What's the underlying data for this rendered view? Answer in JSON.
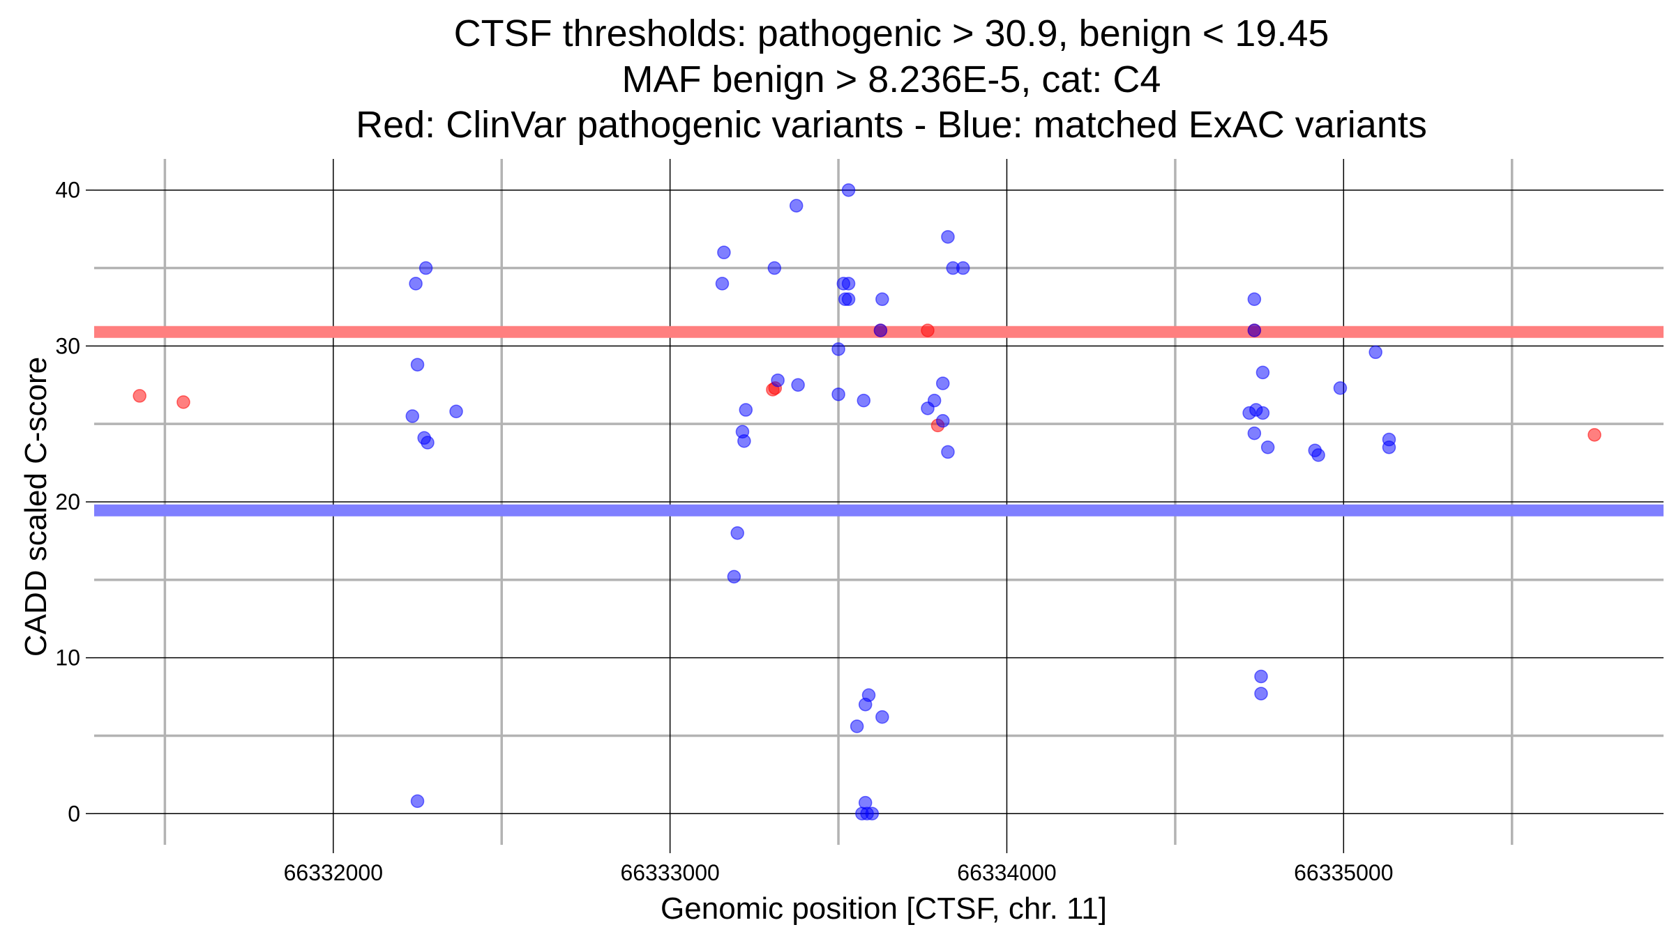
{
  "chart_data": {
    "type": "scatter",
    "title": [
      "CTSF thresholds: pathogenic > 30.9, benign < 19.45",
      "MAF benign > 8.236E-5, cat: C4",
      "Red: ClinVar pathogenic variants - Blue: matched ExAC variants"
    ],
    "xlabel": "Genomic position [CTSF, chr. 11]",
    "ylabel": "CADD scaled C-score",
    "xlim": [
      66331290,
      66335950
    ],
    "ylim": [
      -2,
      42
    ],
    "x_ticks": [
      66332000,
      66333000,
      66334000,
      66335000
    ],
    "x_tick_labels": [
      "66332000",
      "66333000",
      "66334000",
      "66335000"
    ],
    "x_minor_ticks": [
      66331500,
      66332500,
      66333500,
      66334500,
      66335500
    ],
    "y_ticks": [
      0,
      10,
      20,
      30,
      40
    ],
    "y_tick_labels": [
      "0",
      "10",
      "20",
      "30",
      "40"
    ],
    "y_minor_ticks": [
      5,
      15,
      25,
      35
    ],
    "grid": true,
    "colors": {
      "pathogenic": "#ff0000",
      "benign": "#0000ff",
      "pathogenic_line": "#ff7f7f",
      "benign_line": "#7f7fff",
      "major_grid": "#000000",
      "minor_grid": "#b3b3b3"
    },
    "thresholds": [
      {
        "name": "pathogenic",
        "y": 30.9,
        "color": "#ff7f7f"
      },
      {
        "name": "benign",
        "y": 19.45,
        "color": "#7f7fff"
      }
    ],
    "series": [
      {
        "color": "#ff0000",
        "points": [
          [
            66331425,
            26.8
          ],
          [
            66331555,
            26.4
          ],
          [
            66333305,
            27.2
          ],
          [
            66333312,
            27.3
          ],
          [
            66333625,
            31.0
          ],
          [
            66333765,
            31.0
          ],
          [
            66333795,
            24.9
          ],
          [
            66334735,
            31.0
          ],
          [
            66335745,
            24.3
          ]
        ]
      },
      {
        "color": "#0000ff",
        "points": [
          [
            66332245,
            34.0
          ],
          [
            66332275,
            35.0
          ],
          [
            66332250,
            28.8
          ],
          [
            66332235,
            25.5
          ],
          [
            66332270,
            24.1
          ],
          [
            66332280,
            23.8
          ],
          [
            66332365,
            25.8
          ],
          [
            66332250,
            0.8
          ],
          [
            66333160,
            36.0
          ],
          [
            66333155,
            34.0
          ],
          [
            66333310,
            35.0
          ],
          [
            66333375,
            39.0
          ],
          [
            66333320,
            27.8
          ],
          [
            66333380,
            27.5
          ],
          [
            66333225,
            25.9
          ],
          [
            66333215,
            24.5
          ],
          [
            66333220,
            23.9
          ],
          [
            66333200,
            18.0
          ],
          [
            66333190,
            15.2
          ],
          [
            66333530,
            40.0
          ],
          [
            66333515,
            34.0
          ],
          [
            66333530,
            34.0
          ],
          [
            66333520,
            33.0
          ],
          [
            66333530,
            33.0
          ],
          [
            66333630,
            33.0
          ],
          [
            66333625,
            31.0
          ],
          [
            66333500,
            29.8
          ],
          [
            66333500,
            26.9
          ],
          [
            66333575,
            26.5
          ],
          [
            66333825,
            37.0
          ],
          [
            66333840,
            35.0
          ],
          [
            66333870,
            35.0
          ],
          [
            66333810,
            27.6
          ],
          [
            66333785,
            26.5
          ],
          [
            66333765,
            26.0
          ],
          [
            66333810,
            25.2
          ],
          [
            66333825,
            23.2
          ],
          [
            66333590,
            7.6
          ],
          [
            66333580,
            7.0
          ],
          [
            66333630,
            6.2
          ],
          [
            66333555,
            5.6
          ],
          [
            66333580,
            0.7
          ],
          [
            66333570,
            0.0
          ],
          [
            66333585,
            0.0
          ],
          [
            66333600,
            0.0
          ],
          [
            66334735,
            33.0
          ],
          [
            66334735,
            31.0
          ],
          [
            66334760,
            28.3
          ],
          [
            66334720,
            25.7
          ],
          [
            66334740,
            25.9
          ],
          [
            66334760,
            25.7
          ],
          [
            66334735,
            24.4
          ],
          [
            66334775,
            23.5
          ],
          [
            66334755,
            8.8
          ],
          [
            66334755,
            7.7
          ],
          [
            66334990,
            27.3
          ],
          [
            66334915,
            23.3
          ],
          [
            66334925,
            23.0
          ],
          [
            66335095,
            29.6
          ],
          [
            66335135,
            24.0
          ],
          [
            66335135,
            23.5
          ]
        ]
      }
    ]
  }
}
